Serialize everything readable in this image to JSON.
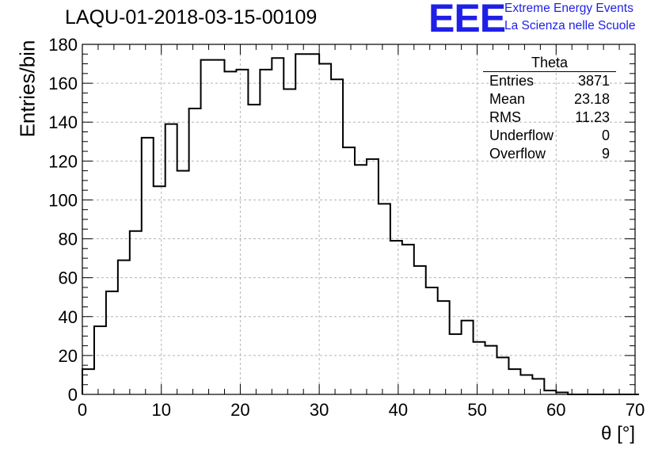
{
  "header": {
    "title": "LAQU-01-2018-03-15-00109",
    "logo_text": "EEE",
    "logo_line1": "Extreme Energy Events",
    "logo_line2": "La Scienza nelle Scuole"
  },
  "stats": {
    "name": "Theta",
    "rows": [
      {
        "label": "Entries",
        "value": "3871"
      },
      {
        "label": "Mean",
        "value": "23.18"
      },
      {
        "label": "RMS",
        "value": "11.23"
      },
      {
        "label": "Underflow",
        "value": "0"
      },
      {
        "label": "Overflow",
        "value": "9"
      }
    ]
  },
  "colors": {
    "line": "#000000",
    "grid": "#b4b4b4",
    "logo": "#1f1fe6"
  },
  "chart_data": {
    "type": "histogram",
    "title": "LAQU-01-2018-03-15-00109",
    "xlabel": "θ [°]",
    "ylabel": "Entries/bin",
    "xlim": [
      0,
      70
    ],
    "ylim": [
      0,
      180
    ],
    "bin_width": 1.5,
    "bin_edges_start": 0,
    "x_ticks": [
      0,
      10,
      20,
      30,
      40,
      50,
      60,
      70
    ],
    "y_ticks": [
      0,
      20,
      40,
      60,
      80,
      100,
      120,
      140,
      160,
      180
    ],
    "grid": true,
    "values": [
      13,
      35,
      53,
      69,
      84,
      132,
      107,
      139,
      115,
      147,
      172,
      172,
      166,
      167,
      149,
      167,
      173,
      157,
      175,
      175,
      170,
      162,
      127,
      118,
      121,
      98,
      79,
      77,
      66,
      55,
      48,
      31,
      38,
      27,
      25,
      19,
      13,
      10,
      8,
      2,
      1,
      0,
      0,
      0,
      0,
      0,
      0
    ]
  }
}
